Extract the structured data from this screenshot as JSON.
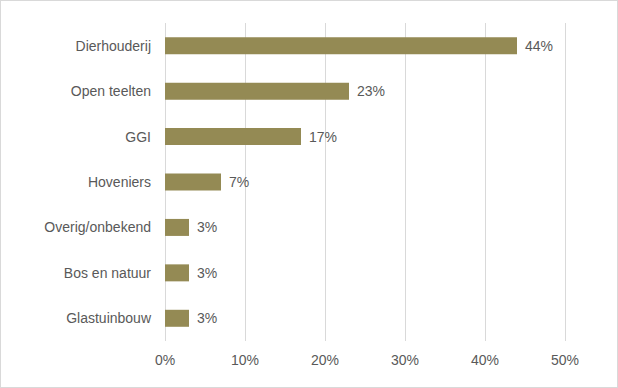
{
  "chart_data": {
    "type": "bar",
    "orientation": "horizontal",
    "categories": [
      "Dierhouderij",
      "Open teelten",
      "GGI",
      "Hoveniers",
      "Overig/onbekend",
      "Bos en natuur",
      "Glastuinbouw"
    ],
    "values": [
      44,
      23,
      17,
      7,
      3,
      3,
      3
    ],
    "value_labels": [
      "44%",
      "23%",
      "17%",
      "7%",
      "3%",
      "3%",
      "3%"
    ],
    "color": "#948a54",
    "xlim": [
      0,
      50
    ],
    "xticks": [
      {
        "value": 0,
        "label": "0%"
      },
      {
        "value": 10,
        "label": "10%"
      },
      {
        "value": 20,
        "label": "20%"
      },
      {
        "value": 30,
        "label": "30%"
      },
      {
        "value": 40,
        "label": "40%"
      },
      {
        "value": 50,
        "label": "50%"
      }
    ],
    "grid": true,
    "data_labels": true
  }
}
